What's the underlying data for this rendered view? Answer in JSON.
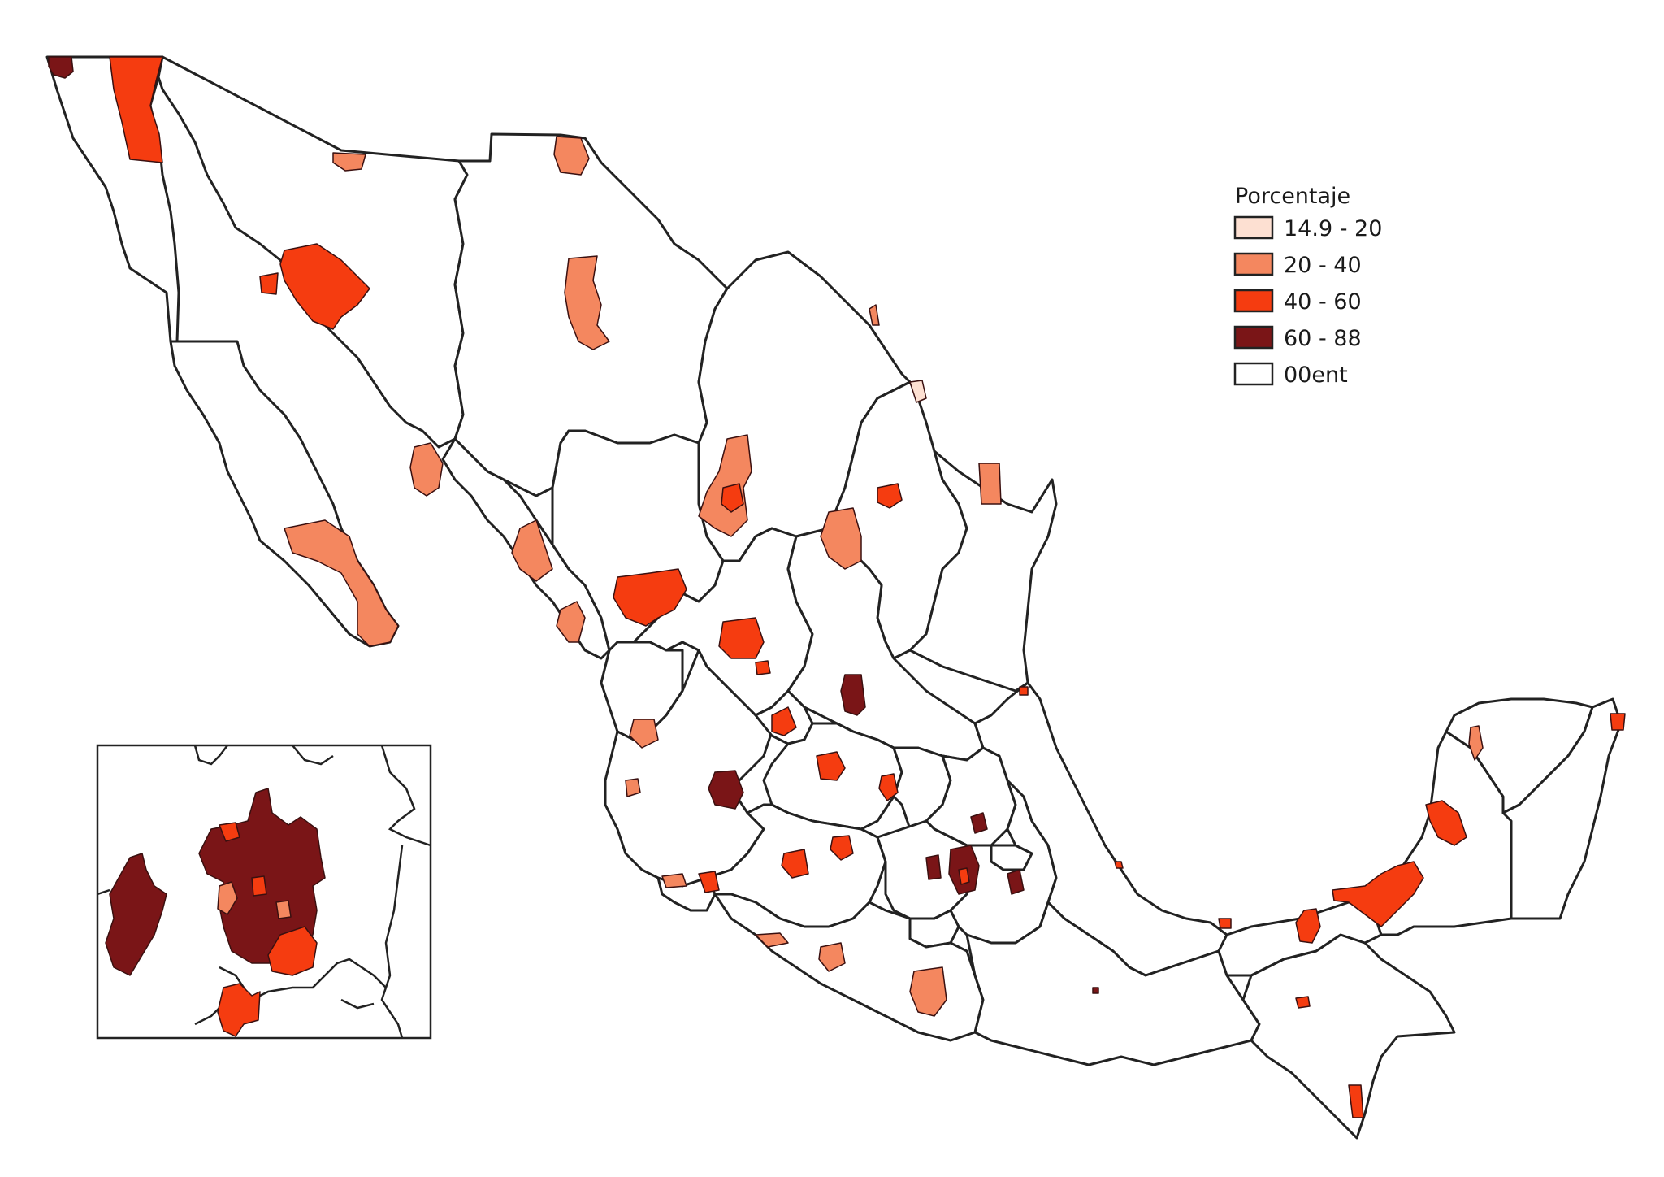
{
  "legend": {
    "title": "Porcentaje",
    "items": [
      {
        "label": "14.9 - 20",
        "color": "#fde0d2"
      },
      {
        "label": "20 - 40",
        "color": "#f4875f"
      },
      {
        "label": "40 - 60",
        "color": "#f53c10"
      },
      {
        "label": "60 - 88",
        "color": "#7a1517"
      },
      {
        "label": "00ent",
        "color": "#ffffff"
      }
    ]
  }
}
